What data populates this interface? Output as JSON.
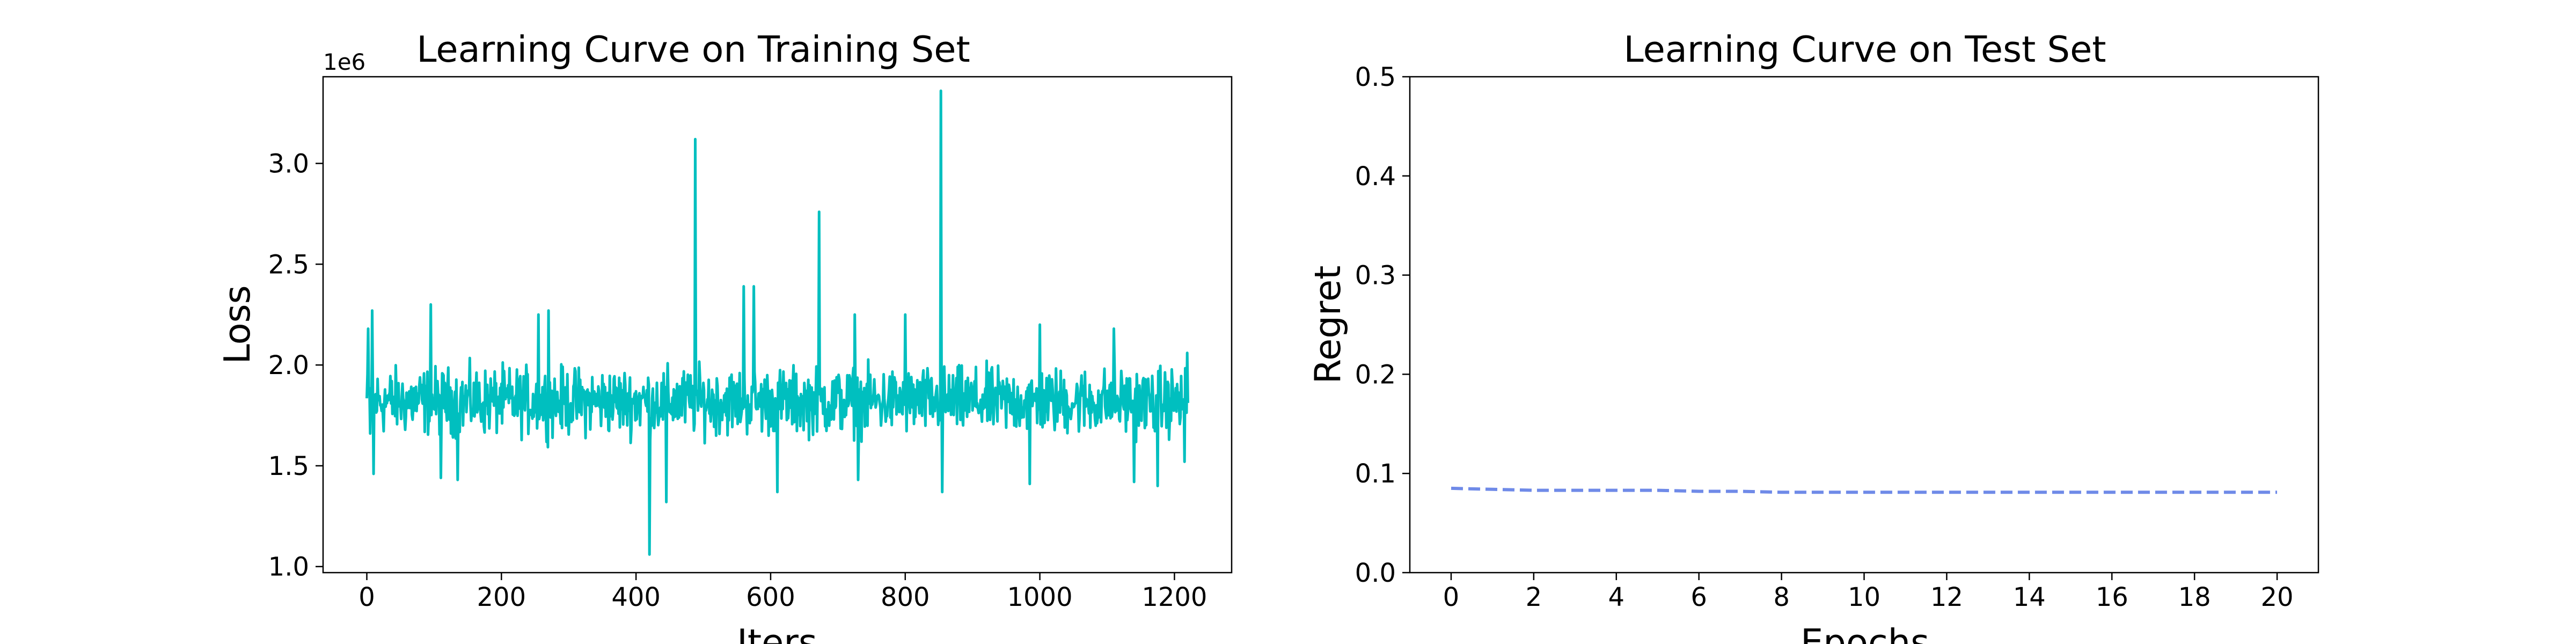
{
  "chart_data": [
    {
      "type": "line",
      "title": "Learning Curve on Training Set",
      "xlabel": "Iters",
      "ylabel": "Loss",
      "y_scale_label": "1e6",
      "xlim": [
        -65,
        1285
      ],
      "ylim": [
        970000.0,
        3430000.0
      ],
      "x_ticks": [
        0,
        200,
        400,
        600,
        800,
        1000,
        1200
      ],
      "y_ticks": [
        1000000.0,
        1500000.0,
        2000000.0,
        2500000.0,
        3000000.0
      ],
      "y_tick_labels": [
        "1.0",
        "1.5",
        "2.0",
        "2.5",
        "3.0"
      ],
      "grid": false,
      "series": [
        {
          "color": "#00bfbf",
          "line_style": "solid",
          "x_range": [
            0,
            1220
          ],
          "baseline": 1820000.0,
          "spread": 150000.0,
          "spikes": [
            {
              "x": 2,
              "y": 2180000.0
            },
            {
              "x": 5,
              "y": 1660000.0
            },
            {
              "x": 8,
              "y": 2270000.0
            },
            {
              "x": 10,
              "y": 1460000.0
            },
            {
              "x": 95,
              "y": 2300000.0
            },
            {
              "x": 110,
              "y": 1440000.0
            },
            {
              "x": 135,
              "y": 1430000.0
            },
            {
              "x": 255,
              "y": 2250000.0
            },
            {
              "x": 270,
              "y": 2270000.0
            },
            {
              "x": 420,
              "y": 1060000.0
            },
            {
              "x": 445,
              "y": 1320000.0
            },
            {
              "x": 488,
              "y": 3120000.0
            },
            {
              "x": 560,
              "y": 2390000.0
            },
            {
              "x": 575,
              "y": 2390000.0
            },
            {
              "x": 610,
              "y": 1370000.0
            },
            {
              "x": 672,
              "y": 2760000.0
            },
            {
              "x": 725,
              "y": 2250000.0
            },
            {
              "x": 730,
              "y": 1430000.0
            },
            {
              "x": 800,
              "y": 2250000.0
            },
            {
              "x": 853,
              "y": 3360000.0
            },
            {
              "x": 855,
              "y": 1370000.0
            },
            {
              "x": 985,
              "y": 1410000.0
            },
            {
              "x": 1000,
              "y": 2200000.0
            },
            {
              "x": 1110,
              "y": 2180000.0
            },
            {
              "x": 1140,
              "y": 1420000.0
            },
            {
              "x": 1175,
              "y": 1400000.0
            },
            {
              "x": 1215,
              "y": 1520000.0
            },
            {
              "x": 1219,
              "y": 2060000.0
            }
          ]
        }
      ]
    },
    {
      "type": "line",
      "title": "Learning Curve on Test Set",
      "xlabel": "Epochs",
      "ylabel": "Regret",
      "xlim": [
        -1,
        21
      ],
      "ylim": [
        0.0,
        0.5
      ],
      "x_ticks": [
        0,
        2,
        4,
        6,
        8,
        10,
        12,
        14,
        16,
        18,
        20
      ],
      "y_ticks": [
        0.0,
        0.1,
        0.2,
        0.3,
        0.4,
        0.5
      ],
      "y_tick_labels": [
        "0.0",
        "0.1",
        "0.2",
        "0.3",
        "0.4",
        "0.5"
      ],
      "grid": false,
      "series": [
        {
          "color": "#6f8ae8",
          "line_style": "dashed",
          "x": [
            0,
            1,
            2,
            3,
            4,
            5,
            6,
            7,
            8,
            9,
            10,
            11,
            12,
            13,
            14,
            15,
            16,
            17,
            18,
            19,
            20
          ],
          "y": [
            0.085,
            0.084,
            0.083,
            0.083,
            0.083,
            0.083,
            0.082,
            0.082,
            0.081,
            0.081,
            0.081,
            0.081,
            0.081,
            0.081,
            0.081,
            0.081,
            0.081,
            0.081,
            0.081,
            0.081,
            0.081
          ]
        }
      ]
    }
  ]
}
